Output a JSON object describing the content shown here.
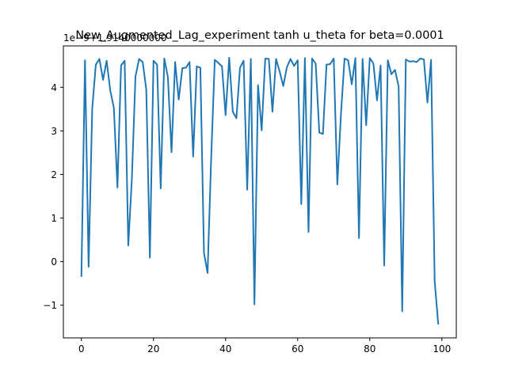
{
  "chart_data": {
    "type": "line",
    "title": "New_Augmented_Lag_experiment tanh u_theta for beta=0.0001",
    "offset_label": "1e−9+1.9140000000",
    "xlabel": "",
    "ylabel": "",
    "xlim": [
      -5,
      104
    ],
    "ylim": [
      -1.75,
      4.95
    ],
    "xticks": [
      0,
      20,
      40,
      60,
      80,
      100
    ],
    "yticks": [
      -1,
      0,
      1,
      2,
      3,
      4
    ],
    "grid": false,
    "line_color": "#1f77b4",
    "x": [
      0,
      1,
      2,
      3,
      4,
      5,
      6,
      7,
      8,
      9,
      10,
      11,
      12,
      13,
      14,
      15,
      16,
      17,
      18,
      19,
      20,
      21,
      22,
      23,
      24,
      25,
      26,
      27,
      28,
      29,
      30,
      31,
      32,
      33,
      34,
      35,
      36,
      37,
      38,
      39,
      40,
      41,
      42,
      43,
      44,
      45,
      46,
      47,
      48,
      49,
      50,
      51,
      52,
      53,
      54,
      55,
      56,
      57,
      58,
      59,
      60,
      61,
      62,
      63,
      64,
      65,
      66,
      67,
      68,
      69,
      70,
      71,
      72,
      73,
      74,
      75,
      76,
      77,
      78,
      79,
      80,
      81,
      82,
      83,
      84,
      85,
      86,
      87,
      88,
      89,
      90,
      91,
      92,
      93,
      94,
      95,
      96,
      97,
      98,
      99
    ],
    "y": [
      -0.35,
      4.62,
      -0.12,
      3.5,
      4.52,
      4.65,
      4.17,
      4.61,
      3.93,
      3.53,
      1.7,
      4.5,
      4.61,
      0.37,
      1.9,
      4.25,
      4.65,
      4.58,
      3.95,
      0.09,
      4.61,
      4.52,
      1.68,
      4.66,
      4.23,
      2.51,
      4.58,
      3.72,
      4.44,
      4.45,
      4.58,
      2.41,
      4.48,
      4.45,
      0.2,
      -0.26,
      2.37,
      4.63,
      4.56,
      4.48,
      3.36,
      4.68,
      3.44,
      3.29,
      4.45,
      4.61,
      1.65,
      4.65,
      -0.98,
      4.05,
      3.01,
      4.66,
      4.65,
      3.44,
      4.65,
      4.36,
      4.03,
      4.46,
      4.65,
      4.49,
      4.62,
      1.32,
      4.67,
      0.68,
      4.66,
      4.54,
      2.96,
      2.93,
      4.52,
      4.53,
      4.66,
      1.77,
      3.38,
      4.66,
      4.62,
      4.07,
      4.67,
      0.54,
      4.65,
      3.13,
      4.67,
      4.55,
      3.7,
      4.5,
      -0.09,
      4.62,
      4.3,
      4.4,
      4.02,
      -1.14,
      4.64,
      4.59,
      4.6,
      4.58,
      4.66,
      4.64,
      3.65,
      4.63,
      -0.45,
      -1.44
    ]
  }
}
